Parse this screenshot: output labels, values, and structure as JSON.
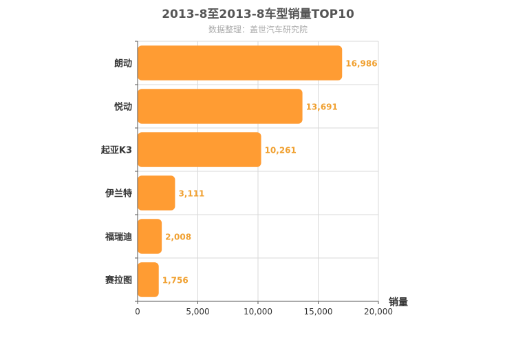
{
  "chart_data": {
    "type": "bar",
    "orientation": "horizontal",
    "title": "2013-8至2013-8车型销量TOP10",
    "subtitle": "数据整理：盖世汽车研究院",
    "categories": [
      "朗动",
      "悦动",
      "起亚K3",
      "伊兰特",
      "福瑞迪",
      "赛拉图"
    ],
    "values": [
      16986,
      13691,
      10261,
      3111,
      2008,
      1756
    ],
    "value_labels": [
      "16,986",
      "13,691",
      "10,261",
      "3,111",
      "2,008",
      "1,756"
    ],
    "xlabel": "销量",
    "ylabel": "",
    "xlim": [
      0,
      20000
    ],
    "xticks": [
      0,
      5000,
      10000,
      15000,
      20000
    ],
    "xtick_labels": [
      "0",
      "5,000",
      "10,000",
      "15,000",
      "20,000"
    ],
    "grid": true,
    "bar_color": "#ff9c33",
    "label_color": "#f0a030"
  }
}
